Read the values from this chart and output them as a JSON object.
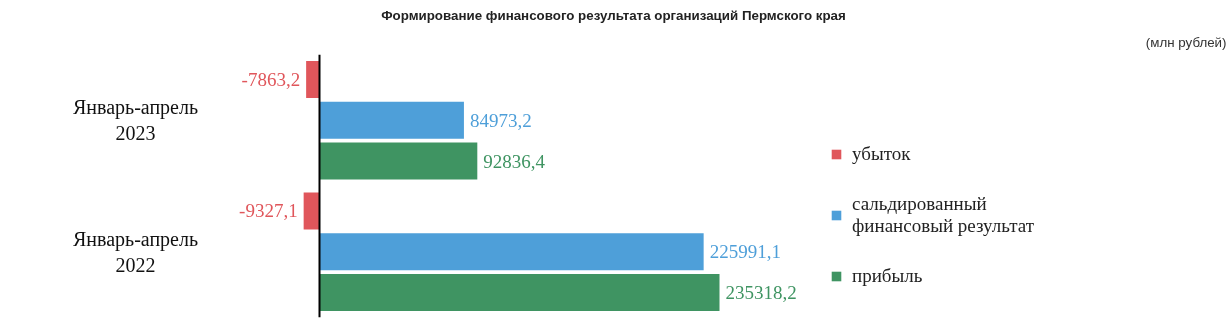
{
  "chart_data": {
    "type": "bar",
    "orientation": "horizontal",
    "title": "Формирование финансового результата организаций Пермского края",
    "annotations": [
      "(млн рублей)"
    ],
    "categories": [
      "Январь-апрель 2023",
      "Январь-апрель 2022"
    ],
    "series": [
      {
        "name": "убыток",
        "color": "#e0565b",
        "values": [
          -7863.2,
          -9327.1
        ],
        "value_labels": [
          "-7863,2",
          "-9327,1"
        ]
      },
      {
        "name": "сальдированный финансовый результат",
        "color": "#4e9fd9",
        "values": [
          84973.2,
          225991.1
        ],
        "value_labels": [
          "84973,2",
          "225991,1"
        ]
      },
      {
        "name": "прибыль",
        "color": "#3f9462",
        "values": [
          92836.4,
          235318.2
        ],
        "value_labels": [
          "92836,4",
          "235318,2"
        ]
      }
    ],
    "legend": "right",
    "grid": false
  }
}
